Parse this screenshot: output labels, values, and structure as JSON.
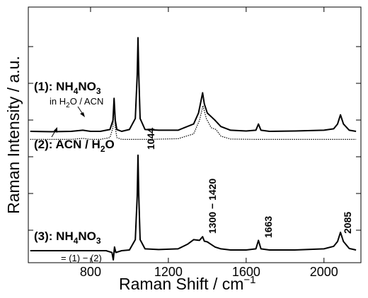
{
  "chart_data": {
    "type": "line",
    "xlabel": "Raman Shift / cm",
    "xlabel_sup": "−1",
    "ylabel": "Raman Intensity / a.u.",
    "xlim": [
      480,
      2190
    ],
    "x_ticks": [
      800,
      1200,
      1600,
      2000
    ],
    "grid": false,
    "legend": "none",
    "series": [
      {
        "name": "(1): NH4NO3 in H2O / ACN",
        "style": "solid-bold",
        "color": "#000000",
        "offset": 3.2,
        "x": [
          490,
          600,
          700,
          760,
          800,
          850,
          900,
          915,
          921,
          927,
          935,
          960,
          1000,
          1030,
          1040,
          1044,
          1048,
          1055,
          1080,
          1150,
          1250,
          1330,
          1355,
          1365,
          1376,
          1385,
          1400,
          1420,
          1440,
          1470,
          1520,
          1600,
          1650,
          1663,
          1676,
          1720,
          1850,
          2000,
          2050,
          2070,
          2085,
          2100,
          2130,
          2165
        ],
        "y": [
          0.05,
          0.04,
          0.05,
          0.08,
          0.05,
          0.05,
          0.1,
          0.35,
          0.95,
          0.35,
          0.1,
          0.05,
          0.1,
          0.4,
          1.6,
          2.6,
          1.6,
          0.4,
          0.1,
          0.08,
          0.08,
          0.25,
          0.55,
          0.8,
          1.1,
          0.8,
          0.55,
          0.45,
          0.35,
          0.18,
          0.08,
          0.06,
          0.08,
          0.25,
          0.08,
          0.05,
          0.06,
          0.08,
          0.12,
          0.25,
          0.5,
          0.25,
          0.08,
          0.05
        ]
      },
      {
        "name": "(2): ACN / H2O",
        "style": "dotted",
        "color": "#000000",
        "offset": 3.0,
        "x": [
          490,
          600,
          700,
          760,
          800,
          850,
          900,
          915,
          921,
          927,
          935,
          960,
          1000,
          1100,
          1250,
          1330,
          1360,
          1378,
          1395,
          1420,
          1445,
          1470,
          1520,
          1650,
          1800,
          2165
        ],
        "y": [
          0.03,
          0.03,
          0.03,
          0.06,
          0.03,
          0.03,
          0.08,
          0.35,
          0.95,
          0.35,
          0.08,
          0.03,
          0.03,
          0.03,
          0.05,
          0.18,
          0.55,
          0.95,
          0.6,
          0.35,
          0.3,
          0.12,
          0.04,
          0.03,
          0.03,
          0.03
        ]
      },
      {
        "name": "(3): NH4NO3 = (1) − (2)",
        "style": "solid-bold",
        "color": "#000000",
        "offset": 0.0,
        "x": [
          490,
          600,
          700,
          800,
          880,
          910,
          917,
          923,
          930,
          960,
          1000,
          1030,
          1040,
          1044,
          1048,
          1055,
          1080,
          1150,
          1250,
          1300,
          1330,
          1360,
          1376,
          1385,
          1400,
          1420,
          1440,
          1470,
          1520,
          1600,
          1650,
          1663,
          1676,
          1720,
          1850,
          2000,
          2050,
          2070,
          2085,
          2100,
          2130,
          2165
        ],
        "y": [
          0.0,
          0.0,
          0.0,
          0.0,
          0.0,
          -0.05,
          -0.25,
          0.1,
          -0.05,
          0.0,
          0.02,
          0.3,
          1.5,
          2.6,
          1.5,
          0.3,
          0.05,
          0.03,
          0.05,
          0.18,
          0.3,
          0.28,
          0.38,
          0.26,
          0.24,
          0.17,
          0.1,
          0.05,
          0.02,
          0.02,
          0.05,
          0.28,
          0.05,
          0.02,
          0.02,
          0.05,
          0.12,
          0.25,
          0.5,
          0.25,
          0.06,
          0.02
        ]
      }
    ],
    "annotations": {
      "label1_prefix": "(1): NH",
      "label1_sub1": "4",
      "label1_mid": "NO",
      "label1_sub2": "3",
      "label1b_prefix": "in H",
      "label1b_sub": "2",
      "label1b_suffix": "O / ACN",
      "label2_prefix": "(2): ACN / H",
      "label2_sub": "2",
      "label2_suffix": "O",
      "label3_prefix": "(3): NH",
      "label3_sub1": "4",
      "label3_mid": "NO",
      "label3_sub2": "3",
      "label3b": "= (1) − (2)",
      "peak_1044": "1044",
      "peak_1300_1420": "1300 − 1420",
      "peak_1663": "1663",
      "peak_2085": "2085"
    }
  }
}
